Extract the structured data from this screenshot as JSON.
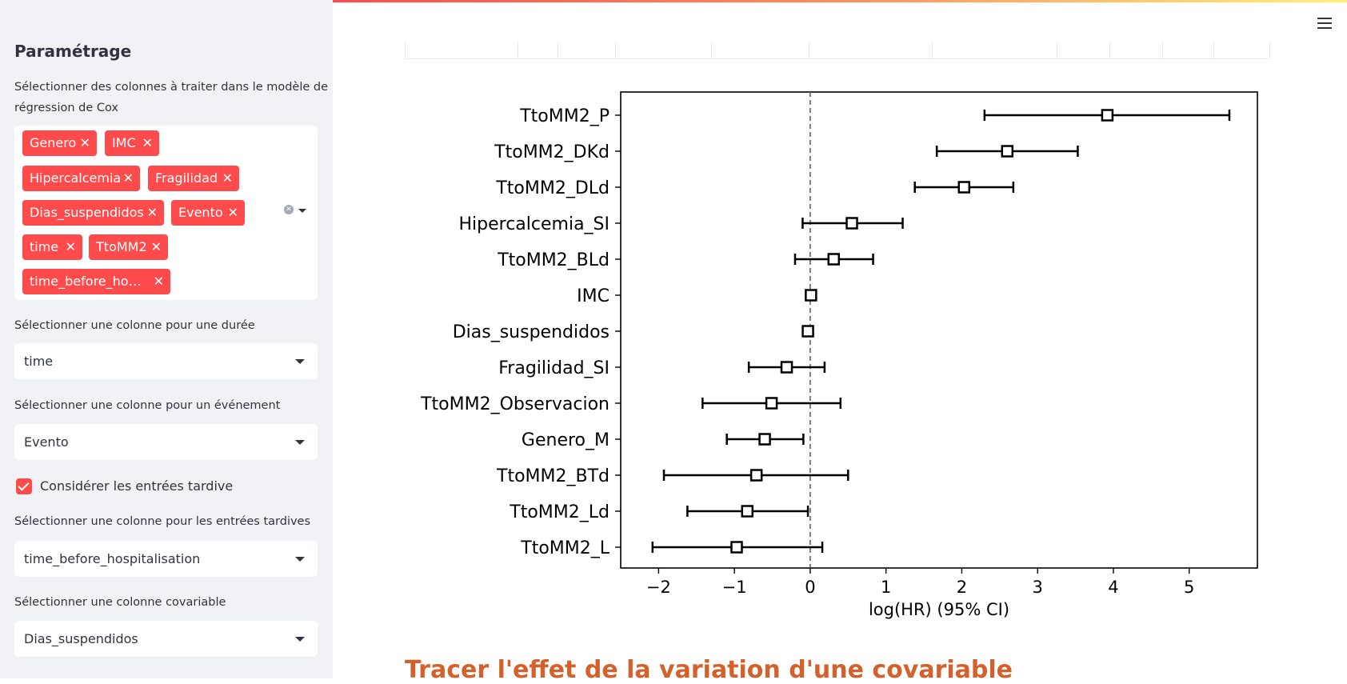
{
  "sidebar": {
    "title": "Paramétrage",
    "multiselect_label": "Sélectionner des colonnes à traiter dans le modèle de régression de Cox",
    "multiselect_label_line1": "Sélectionner des colonnes à traiter dans le modèle de",
    "multiselect_label_line2": "régression de Cox",
    "tags": [
      "Genero",
      "IMC",
      "Hipercalcemia",
      "Fragilidad",
      "Dias_suspendidos",
      "Evento",
      "time",
      "TtoMM2",
      "time_before_ho…"
    ],
    "duration_label": "Sélectionner une colonne pour une durée",
    "duration_value": "time",
    "event_label": "Sélectionner une colonne pour un événement",
    "event_value": "Evento",
    "late_entry_checkbox_label": "Considérer les entrées tardive",
    "late_entry_checked": true,
    "late_entry_label": "Sélectionner une colonne pour les entrées tardives",
    "late_entry_value": "time_before_hospitalisation",
    "covariate_label": "Sélectionner une colonne covariable",
    "covariate_value": "Dias_suspendidos"
  },
  "colors": {
    "accent": "#ff4b4b",
    "sidebar_bg": "#f0f2f6",
    "heading": "#d4612b"
  },
  "icons": {
    "menu": "hamburger-menu-icon",
    "tag_remove": "close-icon",
    "clear": "clear-icon",
    "dropdown": "chevron-down-icon",
    "check": "check-icon"
  },
  "main": {
    "section_heading": "Tracer l'effet de la variation d'une covariable"
  },
  "chart_data": {
    "type": "forest",
    "xlabel": "log(HR) (95% CI)",
    "xlim": [
      -2.5,
      5.9
    ],
    "xticks": [
      -2,
      -1,
      0,
      1,
      2,
      3,
      4,
      5
    ],
    "xtick_labels": [
      "−2",
      "−1",
      "0",
      "1",
      "2",
      "3",
      "4",
      "5"
    ],
    "reference_line": 0,
    "rows": [
      {
        "label": "TtoMM2_P",
        "value": 3.92,
        "lower": 2.3,
        "upper": 5.53
      },
      {
        "label": "TtoMM2_DKd",
        "value": 2.6,
        "lower": 1.67,
        "upper": 3.53
      },
      {
        "label": "TtoMM2_DLd",
        "value": 2.03,
        "lower": 1.38,
        "upper": 2.68
      },
      {
        "label": "Hipercalcemia_SI",
        "value": 0.55,
        "lower": -0.1,
        "upper": 1.22
      },
      {
        "label": "TtoMM2_BLd",
        "value": 0.31,
        "lower": -0.2,
        "upper": 0.83
      },
      {
        "label": "IMC",
        "value": 0.01,
        "lower": -0.02,
        "upper": 0.04
      },
      {
        "label": "Dias_suspendidos",
        "value": -0.03,
        "lower": -0.06,
        "upper": 0.0
      },
      {
        "label": "Fragilidad_SI",
        "value": -0.31,
        "lower": -0.81,
        "upper": 0.19
      },
      {
        "label": "TtoMM2_Observacion",
        "value": -0.51,
        "lower": -1.42,
        "upper": 0.4
      },
      {
        "label": "Genero_M",
        "value": -0.6,
        "lower": -1.1,
        "upper": -0.09
      },
      {
        "label": "TtoMM2_BTd",
        "value": -0.71,
        "lower": -1.93,
        "upper": 0.5
      },
      {
        "label": "TtoMM2_Ld",
        "value": -0.83,
        "lower": -1.62,
        "upper": -0.03
      },
      {
        "label": "TtoMM2_L",
        "value": -0.97,
        "lower": -2.08,
        "upper": 0.16
      }
    ]
  }
}
